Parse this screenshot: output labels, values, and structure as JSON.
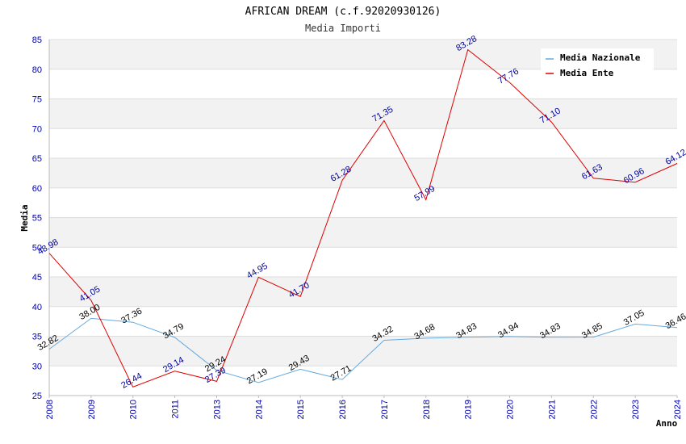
{
  "chart_data": {
    "type": "line",
    "title": "AFRICAN DREAM (c.f.92020930126)",
    "subtitle": "Media Importi",
    "xlabel": "Anno",
    "ylabel": "Media",
    "ylim": [
      25,
      85
    ],
    "yticks": [
      "25",
      "30",
      "35",
      "40",
      "45",
      "50",
      "55",
      "60",
      "65",
      "70",
      "75",
      "80",
      "85"
    ],
    "categories": [
      "2008",
      "2009",
      "2010",
      "2011",
      "2013",
      "2014",
      "2015",
      "2016",
      "2017",
      "2018",
      "2019",
      "2020",
      "2021",
      "2022",
      "2023",
      "2024"
    ],
    "series": [
      {
        "name": "Media Nazionale",
        "color": "#66aadd",
        "label_color": "#000000",
        "values": [
          32.82,
          38.0,
          37.36,
          34.79,
          29.24,
          27.19,
          29.43,
          27.71,
          34.32,
          34.68,
          34.83,
          34.94,
          34.83,
          34.85,
          37.05,
          36.46
        ],
        "labels": [
          "32.82",
          "38.00",
          "37.36",
          "34.79",
          "29.24",
          "27.19",
          "29.43",
          "27.71",
          "34.32",
          "34.68",
          "34.83",
          "34.94",
          "34.83",
          "34.85",
          "37.05",
          "36.46"
        ]
      },
      {
        "name": "Media Ente",
        "color": "#dd0000",
        "label_color": "#000099",
        "values": [
          48.98,
          41.05,
          26.44,
          29.14,
          27.39,
          44.95,
          41.7,
          61.28,
          71.35,
          57.99,
          83.28,
          77.76,
          71.1,
          61.63,
          60.96,
          64.12
        ],
        "labels": [
          "48.98",
          "41.05",
          "26.44",
          "29.14",
          "27.39",
          "44.95",
          "41.70",
          "61.28",
          "71.35",
          "57.99",
          "83.28",
          "77.76",
          "71.10",
          "61.63",
          "60.96",
          "64.12"
        ]
      }
    ],
    "legend": "top-right",
    "grid": true
  }
}
